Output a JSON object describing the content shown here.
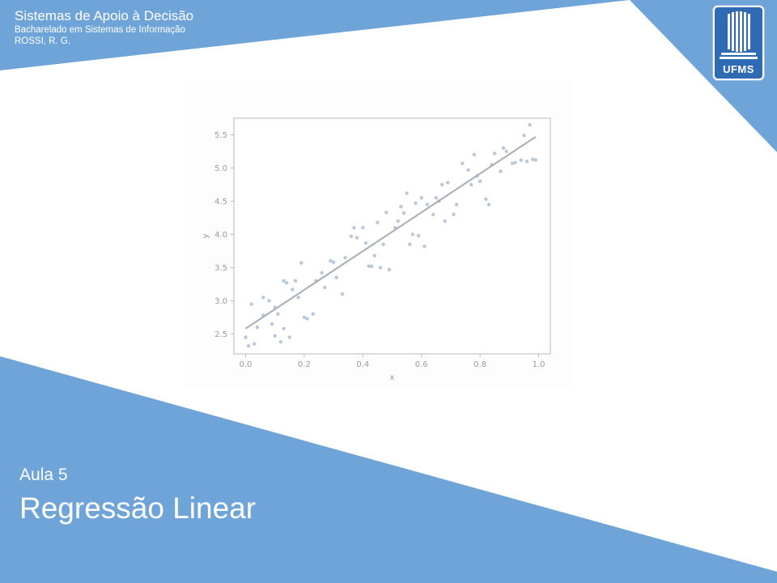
{
  "header": {
    "title": "Sistemas de Apoio à Decisão",
    "course": "Bacharelado em Sistemas de Informação",
    "author": "ROSSI, R. G."
  },
  "logo": {
    "text": "UFMS",
    "icon": "ufms-building-logo"
  },
  "footer": {
    "lesson": "Aula 5",
    "topic": "Regressão Linear"
  },
  "colors": {
    "accent_blue": "#6fa4d9",
    "logo_blue": "#2f6bb3",
    "points": "#b9c8d6",
    "line": "#a7adb3"
  },
  "chart_data": {
    "type": "scatter",
    "xlabel": "x",
    "ylabel": "y",
    "xlim": [
      -0.04,
      1.04
    ],
    "ylim": [
      2.2,
      5.75
    ],
    "xticks": [
      "0.0",
      "0.2",
      "0.4",
      "0.6",
      "0.8",
      "1.0"
    ],
    "xtick_values": [
      0,
      0.2,
      0.4,
      0.6,
      0.8,
      1.0
    ],
    "yticks": [
      "2.5",
      "3.0",
      "3.5",
      "4.0",
      "4.5",
      "5.0",
      "5.5"
    ],
    "ytick_values": [
      2.5,
      3.0,
      3.5,
      4.0,
      4.5,
      5.0,
      5.5
    ],
    "grid": false,
    "series": [
      {
        "kind": "points",
        "x": [
          0.0,
          0.01,
          0.02,
          0.03,
          0.04,
          0.06,
          0.06,
          0.08,
          0.09,
          0.1,
          0.1,
          0.11,
          0.12,
          0.13,
          0.13,
          0.14,
          0.15,
          0.16,
          0.17,
          0.18,
          0.19,
          0.2,
          0.21,
          0.23,
          0.24,
          0.26,
          0.27,
          0.29,
          0.3,
          0.31,
          0.33,
          0.34,
          0.36,
          0.37,
          0.38,
          0.4,
          0.41,
          0.42,
          0.43,
          0.44,
          0.45,
          0.46,
          0.47,
          0.48,
          0.49,
          0.51,
          0.52,
          0.53,
          0.54,
          0.55,
          0.56,
          0.57,
          0.58,
          0.59,
          0.6,
          0.61,
          0.62,
          0.64,
          0.65,
          0.66,
          0.67,
          0.68,
          0.69,
          0.71,
          0.72,
          0.74,
          0.76,
          0.77,
          0.78,
          0.79,
          0.8,
          0.82,
          0.83,
          0.84,
          0.85,
          0.87,
          0.88,
          0.89,
          0.91,
          0.92,
          0.94,
          0.95,
          0.96,
          0.97,
          0.98,
          0.99
        ],
        "y": [
          2.45,
          2.32,
          2.95,
          2.35,
          2.6,
          3.05,
          2.78,
          3.0,
          2.65,
          2.9,
          2.47,
          2.8,
          2.38,
          3.3,
          2.58,
          3.27,
          2.45,
          3.17,
          3.3,
          3.05,
          3.57,
          2.75,
          2.73,
          2.8,
          3.3,
          3.42,
          3.2,
          3.6,
          3.58,
          3.35,
          3.1,
          3.65,
          3.97,
          4.1,
          3.95,
          4.1,
          3.87,
          3.52,
          3.52,
          3.68,
          4.18,
          3.5,
          3.85,
          4.33,
          3.47,
          4.1,
          4.2,
          4.42,
          4.32,
          4.62,
          3.85,
          4.0,
          4.47,
          3.98,
          4.55,
          3.82,
          4.45,
          4.3,
          4.55,
          4.5,
          4.75,
          4.2,
          4.78,
          4.3,
          4.45,
          5.07,
          4.97,
          4.75,
          5.2,
          4.88,
          4.8,
          4.53,
          4.45,
          5.05,
          5.22,
          4.95,
          5.3,
          5.25,
          5.07,
          5.08,
          5.12,
          5.49,
          5.1,
          5.65,
          5.13,
          5.12
        ]
      },
      {
        "kind": "line",
        "x": [
          0.0,
          0.99
        ],
        "y": [
          2.58,
          5.47
        ]
      }
    ]
  }
}
